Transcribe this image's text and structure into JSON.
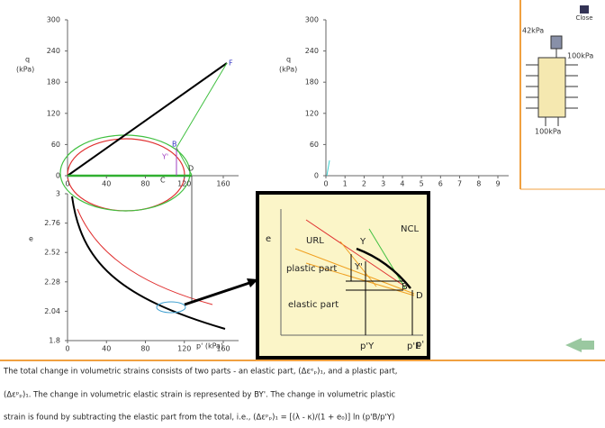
{
  "close_button": "Close",
  "sample": {
    "top_load": "42kPa",
    "side_load": "100kPa",
    "bottom_load": "100kPa"
  },
  "plot_q_p": {
    "ylabel": "q",
    "yunit": "(kPa)",
    "xticks": [
      0,
      40,
      80,
      120,
      160
    ],
    "yticks": [
      0,
      60,
      120,
      180,
      240,
      300
    ],
    "points": {
      "f": "F",
      "b": "B",
      "y": "Y'",
      "d": "D",
      "c": "C"
    }
  },
  "plot_q_strain": {
    "ylabel": "q",
    "yunit": "(kPa)",
    "xticks": [
      0,
      1,
      2,
      3,
      4,
      5,
      6,
      7,
      8,
      9
    ],
    "yticks": [
      0,
      60,
      120,
      180,
      240,
      300
    ]
  },
  "plot_e_p": {
    "ylabel": "e",
    "xlabel": "p' (kPa)",
    "xticks": [
      0,
      40,
      80,
      120,
      160
    ],
    "yticks": [
      1.8,
      2.04,
      2.28,
      2.52,
      2.76,
      3
    ]
  },
  "inset": {
    "ylabel": "e",
    "xlabel": "p'",
    "url": "URL",
    "ncl": "NCL",
    "y": "Y",
    "y_prime": "Y'",
    "b": "B",
    "d": "D",
    "plastic": "plastic part",
    "elastic": "elastic part",
    "p_y": "p'Y",
    "p_e": "p'E"
  },
  "explanation": [
    "The total change in volumetric strains consists of two parts - an elastic part, (Δεᵉₚ)₁, and a plastic part,",
    "(Δεᵖₚ)₁. The change in volumetric elastic strain is represented by BY'. The change in volumetric plastic",
    "strain is found by subtracting the elastic part from the total, i.e., (Δεᵖₚ)₁ = [(λ - κ)/(1 + e₀)] ln (p'B/p'Y)"
  ]
}
